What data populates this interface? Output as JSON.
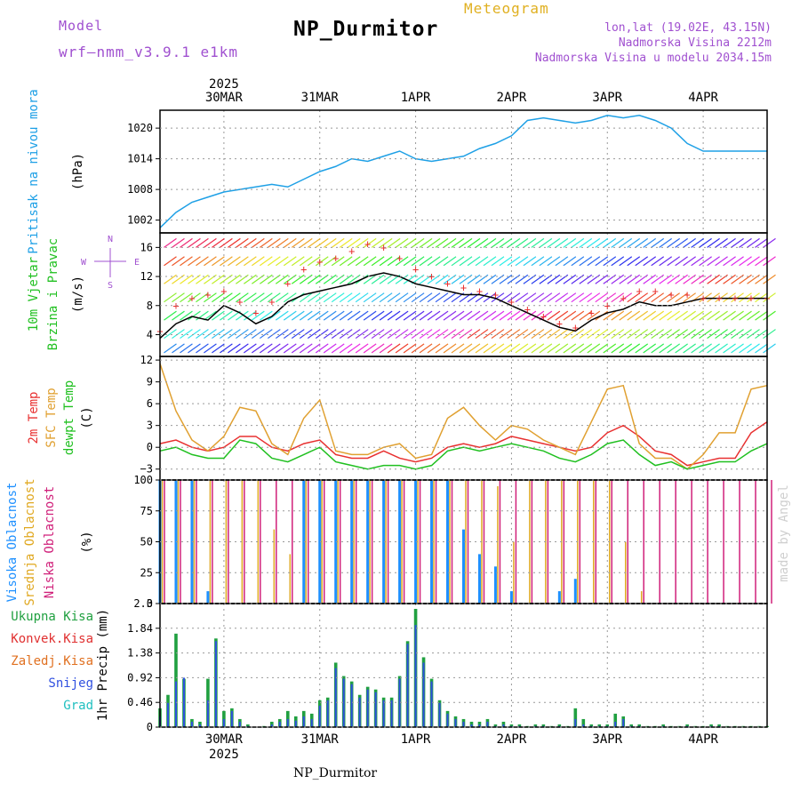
{
  "header": {
    "title": "NP_Durmitor",
    "subtitle": "Meteogram",
    "model_label": "Model",
    "model_name": "wrf–nmm_v3.9.1 e1km",
    "location": "lon,lat (19.02E, 43.15N)",
    "elevation": "Nadmorska Visina 2212m",
    "model_elevation": "Nadmorska Visina u modelu 2034.15m",
    "footer": "NP_Durmitor",
    "credit": "made by Angel"
  },
  "time_axis": {
    "year": "2025",
    "dates": [
      "30MAR",
      "31MAR",
      "1APR",
      "2APR",
      "3APR",
      "4APR"
    ],
    "hours_from_30mar": [
      -16,
      0,
      24,
      48,
      72,
      96,
      120,
      136
    ]
  },
  "panel_labels": {
    "pressure": [
      "Pritisak na nivou mora",
      "(hPa)"
    ],
    "wind": [
      "10m Vjetar",
      "Brzina i Pravac",
      "(m/s)"
    ],
    "compass": [
      "N",
      "W",
      "E",
      "S"
    ],
    "temp": [
      "2m Temp",
      "SFC Temp",
      "dewpt Temp",
      "(C)"
    ],
    "cloud": [
      "Visoka Oblacnost",
      "Srednja Oblacnost",
      "Niska Oblacnost",
      "(%)"
    ],
    "precip": [
      "Ukupna Kisa",
      "Konvek.Kisa",
      "Zaledj.Kisa",
      "Snijeg",
      "Grad",
      "1hr Precip (mm)"
    ]
  },
  "colors": {
    "pressure": "#1ea0e6",
    "temp2m": "#e83030",
    "sfc": "#e0a030",
    "dewpt": "#20c020",
    "high_cloud": "#1e90ff",
    "mid_cloud": "#e0a820",
    "low_cloud": "#d0207a",
    "precip_total": "#20a040",
    "precip_conv": "#e03030",
    "precip_frz": "#e07020",
    "snow": "#3050e0",
    "graupel": "#20c0c0",
    "title_purple": "#a050d0",
    "gold": "#e0b020"
  },
  "chart_data": [
    {
      "type": "line",
      "title": "Pritisak na nivou mora",
      "ylabel": "(hPa)",
      "yticks": [
        "1002",
        "1008",
        "1014",
        "1020"
      ],
      "ylim": [
        999.5,
        1023.5
      ],
      "x": [
        -16,
        -12,
        -8,
        -4,
        0,
        4,
        8,
        12,
        16,
        20,
        24,
        28,
        32,
        36,
        40,
        44,
        48,
        52,
        56,
        60,
        64,
        68,
        72,
        76,
        80,
        84,
        88,
        92,
        96,
        100,
        104,
        108,
        112,
        116,
        120,
        124,
        128,
        132,
        136
      ],
      "series": [
        {
          "values": [
            1000.5,
            1003.5,
            1005.5,
            1006.5,
            1007.5,
            1008.0,
            1008.5,
            1009.0,
            1008.5,
            1010.0,
            1011.5,
            1012.5,
            1014.0,
            1013.5,
            1014.5,
            1015.5,
            1014.0,
            1013.5,
            1014.0,
            1014.5,
            1016.0,
            1017.0,
            1018.5,
            1021.5,
            1022.0,
            1021.5,
            1021.0,
            1021.5,
            1022.5,
            1022.0,
            1022.5,
            1021.5,
            1020.0,
            1017.0,
            1015.5,
            1015.5,
            1015.5,
            1015.5,
            1015.5
          ]
        }
      ]
    },
    {
      "type": "line",
      "title": "10m Vjetar Brzina i Pravac",
      "ylabel": "(m/s)",
      "yticks": [
        "4",
        "8",
        "12",
        "16"
      ],
      "ylim": [
        1,
        18
      ],
      "x": [
        -16,
        -12,
        -8,
        -4,
        0,
        4,
        8,
        12,
        16,
        20,
        24,
        28,
        32,
        36,
        40,
        44,
        48,
        52,
        56,
        60,
        64,
        68,
        72,
        76,
        80,
        84,
        88,
        92,
        96,
        100,
        104,
        108,
        112,
        116,
        120,
        124,
        128,
        132,
        136
      ],
      "series": [
        {
          "values": [
            3.5,
            5.5,
            6.5,
            6.0,
            8.0,
            7.0,
            5.5,
            6.5,
            8.5,
            9.5,
            10.0,
            10.5,
            11.0,
            12.0,
            12.5,
            12.0,
            11.0,
            10.5,
            10.0,
            9.5,
            9.5,
            9.0,
            8.0,
            7.0,
            6.0,
            5.0,
            4.5,
            6.0,
            7.0,
            7.5,
            8.5,
            8.0,
            8.0,
            8.5,
            9.0,
            9.0,
            9.0,
            9.0,
            9.0
          ]
        },
        {
          "values": [
            4.5,
            8.0,
            9.0,
            9.5,
            10.0,
            8.5,
            7.0,
            8.5,
            11.0,
            13.0,
            14.0,
            14.5,
            15.5,
            16.5,
            16.0,
            14.5,
            13.0,
            12.0,
            11.0,
            10.5,
            10.0,
            9.5,
            8.5,
            7.5,
            6.5,
            5.5,
            5.0,
            7.0,
            8.0,
            9.0,
            10.0,
            10.0,
            9.5,
            9.5,
            9.0,
            9.0,
            9.0,
            9.0,
            9.0
          ]
        }
      ]
    },
    {
      "type": "line",
      "title": "2m Temp / SFC Temp / dewpt Temp",
      "ylabel": "(C)",
      "yticks": [
        "−3",
        "0",
        "3",
        "6",
        "9",
        "12"
      ],
      "ylim": [
        -4.5,
        12.5
      ],
      "x": [
        -16,
        -12,
        -8,
        -4,
        0,
        4,
        8,
        12,
        16,
        20,
        24,
        28,
        32,
        36,
        40,
        44,
        48,
        52,
        56,
        60,
        64,
        68,
        72,
        76,
        80,
        84,
        88,
        92,
        96,
        100,
        104,
        108,
        112,
        116,
        120,
        124,
        128,
        132,
        136
      ],
      "series": [
        {
          "name": "2m Temp",
          "values": [
            0.5,
            1.0,
            0.0,
            -0.5,
            0.0,
            1.5,
            1.5,
            0.0,
            -0.5,
            0.5,
            1.0,
            -1.0,
            -1.5,
            -1.5,
            -0.5,
            -1.5,
            -2.0,
            -1.5,
            0.0,
            0.5,
            0.0,
            0.5,
            1.5,
            1.0,
            0.5,
            0.0,
            -0.5,
            0.0,
            2.0,
            3.0,
            1.5,
            -0.5,
            -1.0,
            -2.5,
            -2.0,
            -1.5,
            -1.5,
            2.0,
            3.5
          ]
        },
        {
          "name": "SFC Temp",
          "values": [
            11.5,
            5.0,
            1.0,
            -0.5,
            1.5,
            5.5,
            5.0,
            0.5,
            -1.0,
            4.0,
            6.5,
            -0.5,
            -1.0,
            -1.0,
            0.0,
            0.5,
            -1.5,
            -1.0,
            4.0,
            5.5,
            3.0,
            1.0,
            3.0,
            2.5,
            1.0,
            0.0,
            -1.0,
            3.5,
            8.0,
            8.5,
            0.5,
            -1.5,
            -1.5,
            -3.0,
            -1.0,
            2.0,
            2.0,
            8.0,
            8.5
          ]
        },
        {
          "name": "dewpt Temp",
          "values": [
            -0.5,
            0.0,
            -1.0,
            -1.5,
            -1.5,
            1.0,
            0.5,
            -1.5,
            -2.0,
            -1.0,
            0.0,
            -2.0,
            -2.5,
            -3.0,
            -2.5,
            -2.5,
            -3.0,
            -2.5,
            -0.5,
            0.0,
            -0.5,
            0.0,
            0.5,
            0.0,
            -0.5,
            -1.5,
            -2.0,
            -1.0,
            0.5,
            1.0,
            -1.0,
            -2.5,
            -2.0,
            -3.0,
            -2.5,
            -2.0,
            -2.0,
            -0.5,
            0.5
          ]
        }
      ]
    },
    {
      "type": "bar",
      "title": "Oblacnost",
      "ylabel": "(%)",
      "yticks": [
        "0",
        "25",
        "50",
        "75",
        "100"
      ],
      "ylim": [
        0,
        100
      ],
      "x": [
        -16,
        -12,
        -8,
        -4,
        0,
        4,
        8,
        12,
        16,
        20,
        24,
        28,
        32,
        36,
        40,
        44,
        48,
        52,
        56,
        60,
        64,
        68,
        72,
        76,
        80,
        84,
        88,
        92,
        96,
        100,
        104,
        108,
        112,
        116,
        120,
        124,
        128,
        132,
        136
      ],
      "series": [
        {
          "name": "Visoka Oblacnost",
          "values": [
            100,
            100,
            100,
            10,
            0,
            0,
            0,
            0,
            0,
            100,
            100,
            100,
            100,
            100,
            100,
            100,
            100,
            100,
            100,
            60,
            40,
            30,
            10,
            0,
            0,
            10,
            20,
            0,
            0,
            0,
            0,
            0,
            0,
            0,
            0,
            0,
            0,
            0,
            0
          ]
        },
        {
          "name": "Srednja Oblacnost",
          "values": [
            100,
            100,
            100,
            100,
            100,
            100,
            100,
            60,
            40,
            100,
            100,
            100,
            100,
            100,
            100,
            100,
            100,
            100,
            100,
            100,
            100,
            95,
            50,
            100,
            100,
            100,
            100,
            100,
            100,
            50,
            10,
            0,
            0,
            0,
            0,
            0,
            0,
            0,
            0
          ]
        },
        {
          "name": "Niska Oblacnost",
          "values": [
            100,
            100,
            100,
            100,
            100,
            100,
            100,
            100,
            100,
            100,
            100,
            100,
            100,
            100,
            100,
            100,
            100,
            100,
            100,
            100,
            100,
            100,
            100,
            100,
            100,
            100,
            100,
            100,
            100,
            100,
            100,
            100,
            100,
            100,
            100,
            100,
            100,
            100,
            100
          ]
        }
      ]
    },
    {
      "type": "bar",
      "title": "1hr Precip",
      "ylabel": "1hr Precip (mm)",
      "yticks": [
        "0",
        "0.46",
        "0.92",
        "1.38",
        "1.84",
        "2.3"
      ],
      "ylim": [
        0,
        2.3
      ],
      "x": [
        -16,
        -14,
        -12,
        -10,
        -8,
        -6,
        -4,
        -2,
        0,
        2,
        4,
        6,
        8,
        10,
        12,
        14,
        16,
        18,
        20,
        22,
        24,
        26,
        28,
        30,
        32,
        34,
        36,
        38,
        40,
        42,
        44,
        46,
        48,
        50,
        52,
        54,
        56,
        58,
        60,
        62,
        64,
        66,
        68,
        70,
        72,
        74,
        76,
        78,
        80,
        82,
        84,
        86,
        88,
        90,
        92,
        94,
        96,
        98,
        100,
        102,
        104,
        106,
        108,
        110,
        112,
        114,
        116,
        118,
        120,
        122,
        124,
        126,
        128,
        130,
        132,
        134,
        136
      ],
      "series": [
        {
          "name": "Ukupna Kisa",
          "values": [
            0.35,
            0.6,
            1.74,
            0.9,
            0.15,
            0.1,
            0.9,
            1.65,
            0.3,
            0.35,
            0.15,
            0.05,
            0.0,
            0.02,
            0.1,
            0.15,
            0.3,
            0.2,
            0.3,
            0.25,
            0.5,
            0.55,
            1.2,
            0.95,
            0.85,
            0.6,
            0.75,
            0.7,
            0.55,
            0.55,
            0.95,
            1.6,
            2.2,
            1.3,
            0.9,
            0.5,
            0.3,
            0.2,
            0.15,
            0.1,
            0.1,
            0.15,
            0.05,
            0.1,
            0.05,
            0.05,
            0.02,
            0.05,
            0.05,
            0.02,
            0.05,
            0.02,
            0.35,
            0.15,
            0.05,
            0.05,
            0.05,
            0.25,
            0.2,
            0.05,
            0.05,
            0.02,
            0.02,
            0.05,
            0.02,
            0.02,
            0.05,
            0.02,
            0.02,
            0.05,
            0.05,
            0.02,
            0.02,
            0.02,
            0.02,
            0.02,
            0.02
          ]
        },
        {
          "name": "Snijeg",
          "values": [
            0.2,
            0.45,
            0.85,
            0.92,
            0.1,
            0.05,
            0.5,
            1.6,
            0.15,
            0.3,
            0.1,
            0.02,
            0.0,
            0.0,
            0.05,
            0.1,
            0.15,
            0.12,
            0.2,
            0.15,
            0.4,
            0.5,
            1.1,
            0.9,
            0.8,
            0.55,
            0.7,
            0.65,
            0.5,
            0.5,
            0.9,
            1.55,
            1.9,
            1.2,
            0.85,
            0.45,
            0.25,
            0.15,
            0.1,
            0.05,
            0.05,
            0.1,
            0.02,
            0.05,
            0.02,
            0.02,
            0.0,
            0.02,
            0.02,
            0.0,
            0.02,
            0.0,
            0.15,
            0.05,
            0.02,
            0.02,
            0.02,
            0.1,
            0.15,
            0.02,
            0.02,
            0.0,
            0.0,
            0.02,
            0.0,
            0.0,
            0.02,
            0.0,
            0.0,
            0.02,
            0.02,
            0.0,
            0.0,
            0.0,
            0.0,
            0.0,
            0.0
          ]
        }
      ]
    }
  ]
}
